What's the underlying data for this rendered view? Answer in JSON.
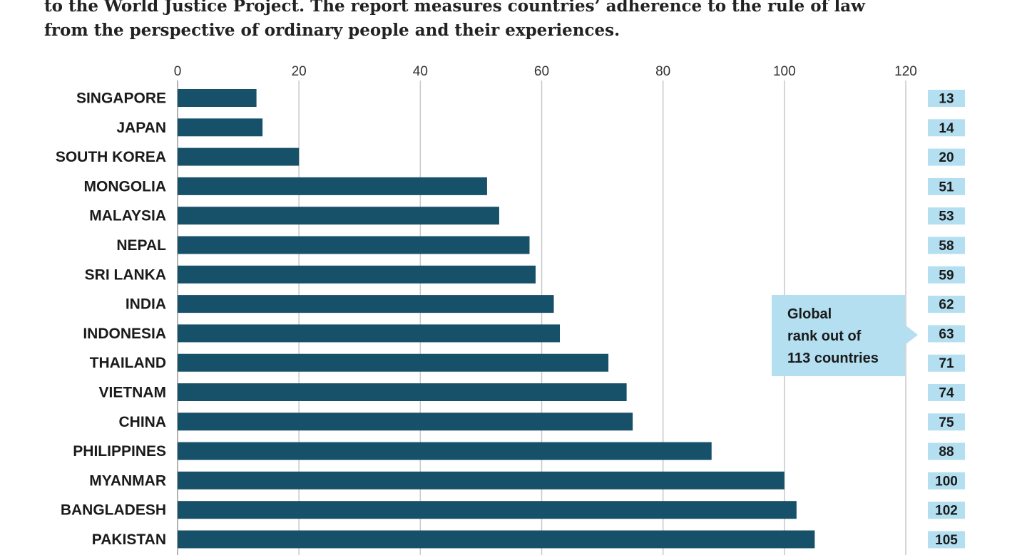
{
  "intro_text": [
    "to the World Justice Project. The report measures countries’ adherence to the rule of law",
    "from the perspective of ordinary people and their experiences."
  ],
  "callout": {
    "lines": [
      "Global",
      "rank out of",
      "113 countries"
    ]
  },
  "colors": {
    "bar": "#175069",
    "rank_box": "#b3dff1",
    "callout_bg": "#b3dff1",
    "grid": "#c8c8c8"
  },
  "chart_data": {
    "type": "bar",
    "orientation": "horizontal",
    "categories": [
      "SINGAPORE",
      "JAPAN",
      "SOUTH KOREA",
      "MONGOLIA",
      "MALAYSIA",
      "NEPAL",
      "SRI LANKA",
      "INDIA",
      "INDONESIA",
      "THAILAND",
      "VIETNAM",
      "CHINA",
      "PHILIPPINES",
      "MYANMAR",
      "BANGLADESH",
      "PAKISTAN"
    ],
    "values": [
      13,
      14,
      20,
      51,
      53,
      58,
      59,
      62,
      63,
      71,
      74,
      75,
      88,
      100,
      102,
      105
    ],
    "rank_labels": [
      "13",
      "14",
      "20",
      "51",
      "53",
      "58",
      "59",
      "62",
      "63",
      "71",
      "74",
      "75",
      "88",
      "100",
      "102",
      "105"
    ],
    "xlim": [
      0,
      120
    ],
    "xticks": [
      0,
      20,
      40,
      60,
      80,
      100,
      120
    ],
    "xtick_labels": [
      "0",
      "20",
      "40",
      "60",
      "80",
      "100",
      "120"
    ],
    "grid": true,
    "axis_position": "top"
  }
}
